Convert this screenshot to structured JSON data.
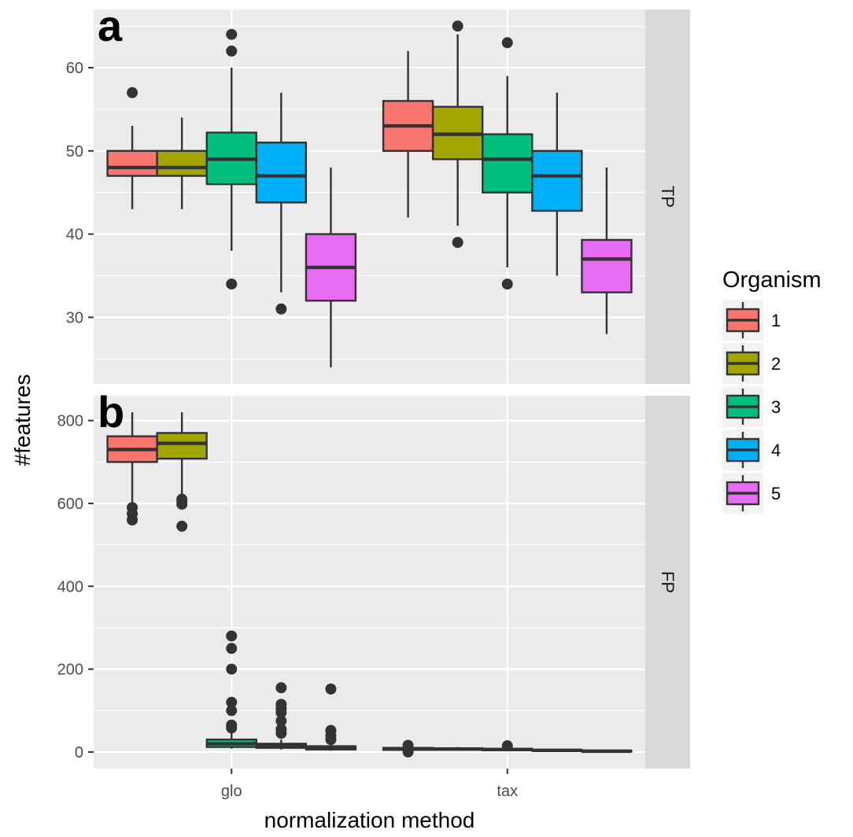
{
  "chart_data": {
    "type": "boxplot",
    "xlabel": "normalization method",
    "ylabel": "#features",
    "categories": [
      "glo",
      "tax"
    ],
    "legend": {
      "title": "Organism",
      "position": "right",
      "entries": [
        {
          "label": "1",
          "color": "#F8766D"
        },
        {
          "label": "2",
          "color": "#A3A500"
        },
        {
          "label": "3",
          "color": "#00BF7D"
        },
        {
          "label": "4",
          "color": "#00B0F6"
        },
        {
          "label": "5",
          "color": "#E76BF3"
        }
      ]
    },
    "grid": true,
    "panels": [
      {
        "letter": "a",
        "strip": "TP",
        "ylim": [
          22,
          67
        ],
        "yticks": [
          30,
          40,
          50,
          60
        ],
        "groups": [
          {
            "category": "glo",
            "boxes": [
              {
                "organism": "1",
                "whisker_low": 43,
                "q1": 47,
                "median": 48,
                "q3": 50,
                "whisker_high": 53,
                "outliers": [
                  57
                ]
              },
              {
                "organism": "2",
                "whisker_low": 43,
                "q1": 47,
                "median": 48,
                "q3": 50,
                "whisker_high": 54,
                "outliers": []
              },
              {
                "organism": "3",
                "whisker_low": 38,
                "q1": 46,
                "median": 49,
                "q3": 52.2,
                "whisker_high": 60,
                "outliers": [
                  34,
                  62,
                  64
                ]
              },
              {
                "organism": "4",
                "whisker_low": 33,
                "q1": 43.8,
                "median": 47,
                "q3": 51,
                "whisker_high": 57,
                "outliers": [
                  31
                ]
              },
              {
                "organism": "5",
                "whisker_low": 24,
                "q1": 32,
                "median": 36,
                "q3": 40,
                "whisker_high": 48,
                "outliers": []
              }
            ]
          },
          {
            "category": "tax",
            "boxes": [
              {
                "organism": "1",
                "whisker_low": 42,
                "q1": 50,
                "median": 53,
                "q3": 56,
                "whisker_high": 62,
                "outliers": []
              },
              {
                "organism": "2",
                "whisker_low": 41,
                "q1": 49,
                "median": 52,
                "q3": 55.3,
                "whisker_high": 64,
                "outliers": [
                  39,
                  65
                ]
              },
              {
                "organism": "3",
                "whisker_low": 36,
                "q1": 45,
                "median": 49,
                "q3": 52,
                "whisker_high": 59,
                "outliers": [
                  34,
                  63
                ]
              },
              {
                "organism": "4",
                "whisker_low": 35,
                "q1": 42.8,
                "median": 47,
                "q3": 50,
                "whisker_high": 57,
                "outliers": []
              },
              {
                "organism": "5",
                "whisker_low": 28,
                "q1": 33,
                "median": 37,
                "q3": 39.3,
                "whisker_high": 48,
                "outliers": []
              }
            ]
          }
        ]
      },
      {
        "letter": "b",
        "strip": "FP",
        "ylim": [
          -40,
          860
        ],
        "yticks": [
          0,
          200,
          400,
          600,
          800
        ],
        "groups": [
          {
            "category": "glo",
            "boxes": [
              {
                "organism": "1",
                "whisker_low": 600,
                "q1": 700,
                "median": 730,
                "q3": 762,
                "whisker_high": 820,
                "outliers": [
                  560,
                  575,
                  590
                ]
              },
              {
                "organism": "2",
                "whisker_low": 615,
                "q1": 708,
                "median": 745,
                "q3": 770,
                "whisker_high": 820,
                "outliers": [
                  545,
                  598,
                  605,
                  610
                ]
              },
              {
                "organism": "3",
                "whisker_low": 8,
                "q1": 12,
                "median": 20,
                "q3": 30,
                "whisker_high": 50,
                "outliers": [
                  58,
                  65,
                  100,
                  120,
                  200,
                  250,
                  280
                ]
              },
              {
                "organism": "4",
                "whisker_low": 6,
                "q1": 10,
                "median": 15,
                "q3": 20,
                "whisker_high": 30,
                "outliers": [
                  45,
                  55,
                  75,
                  95,
                  105,
                  115,
                  155
                ]
              },
              {
                "organism": "5",
                "whisker_low": 3,
                "q1": 6,
                "median": 9,
                "q3": 14,
                "whisker_high": 20,
                "outliers": [
                  30,
                  40,
                  52,
                  152
                ]
              }
            ]
          },
          {
            "category": "tax",
            "boxes": [
              {
                "organism": "1",
                "whisker_low": 2,
                "q1": 5,
                "median": 7,
                "q3": 10,
                "whisker_high": 13,
                "outliers": [
                  0,
                  16
                ]
              },
              {
                "organism": "2",
                "whisker_low": 3,
                "q1": 5,
                "median": 7,
                "q3": 9,
                "whisker_high": 12,
                "outliers": []
              },
              {
                "organism": "3",
                "whisker_low": 2,
                "q1": 4,
                "median": 6,
                "q3": 8,
                "whisker_high": 11,
                "outliers": [
                  15
                ]
              },
              {
                "organism": "4",
                "whisker_low": 1,
                "q1": 3,
                "median": 4,
                "q3": 5,
                "whisker_high": 7,
                "outliers": []
              },
              {
                "organism": "5",
                "whisker_low": 0,
                "q1": 1,
                "median": 2,
                "q3": 3,
                "whisker_high": 4,
                "outliers": []
              }
            ]
          }
        ]
      }
    ]
  }
}
